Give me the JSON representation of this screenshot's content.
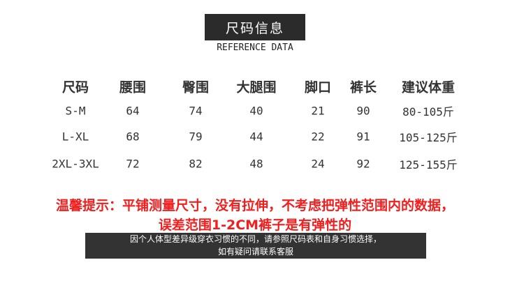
{
  "header": {
    "title": "尺码信息",
    "subtitle": "REFERENCE DATA"
  },
  "table": {
    "columns": [
      "尺码",
      "腰围",
      "臀围",
      "大腿围",
      "脚口",
      "裤长",
      "建议体重"
    ],
    "rows": [
      [
        "S-M",
        "64",
        "74",
        "40",
        "21",
        "90",
        "80-105斤"
      ],
      [
        "L-XL",
        "68",
        "79",
        "44",
        "22",
        "91",
        "105-125斤"
      ],
      [
        "2XL-3XL",
        "72",
        "82",
        "48",
        "24",
        "92",
        "125-155斤"
      ]
    ]
  },
  "tip": {
    "line1": "温馨提示：平铺测量尺寸，没有拉伸，不考虑把弹性范围内的数据，",
    "line2": "误差范围1-2CM裤子是有弹性的"
  },
  "note": {
    "line1": "因个人体型差异级穿衣习惯的不同，请参照尺码表和自身习惯选择，",
    "line2": "如有疑问请联系客服"
  },
  "colors": {
    "tip": "#f21d1d",
    "box": "#2b2b2b"
  }
}
